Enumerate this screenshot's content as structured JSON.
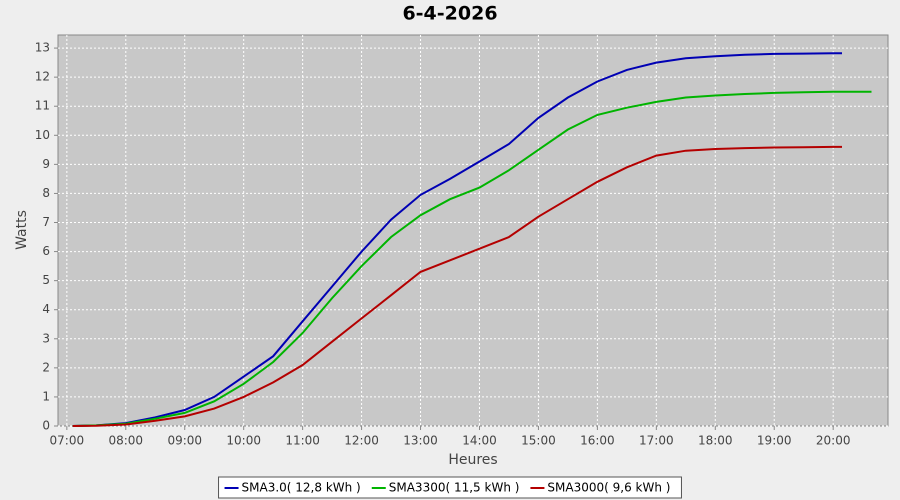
{
  "chart_data": {
    "type": "line",
    "title": "6-4-2026",
    "x_label": "Heures",
    "y_label": "Watts",
    "x": [
      7.1,
      7.5,
      8,
      8.5,
      9,
      9.5,
      10,
      10.5,
      11,
      11.5,
      12,
      12.5,
      13,
      13.5,
      14,
      14.5,
      15,
      15.5,
      16,
      16.5,
      17,
      17.5,
      18,
      18.5,
      19,
      19.5,
      20,
      20.15,
      20.65
    ],
    "series": [
      {
        "name": "SMA3.0( 12,8 kWh )",
        "color": "#0000b4",
        "values": [
          0,
          0.02,
          0.1,
          0.3,
          0.55,
          1.0,
          1.7,
          2.4,
          3.6,
          4.8,
          6.0,
          7.1,
          7.95,
          8.5,
          9.1,
          9.7,
          10.6,
          11.3,
          11.85,
          12.25,
          12.5,
          12.65,
          12.72,
          12.77,
          12.8,
          12.81,
          12.82,
          12.82,
          null
        ]
      },
      {
        "name": "SMA3300( 11,5 kWh )",
        "color": "#00b400",
        "values": [
          0,
          0.02,
          0.08,
          0.25,
          0.45,
          0.85,
          1.45,
          2.2,
          3.2,
          4.4,
          5.5,
          6.5,
          7.25,
          7.8,
          8.2,
          8.8,
          9.5,
          10.2,
          10.7,
          10.95,
          11.15,
          11.3,
          11.37,
          11.42,
          11.46,
          11.48,
          11.5,
          11.5,
          11.5
        ]
      },
      {
        "name": "SMA3000( 9,6 kWh )",
        "color": "#b40000",
        "values": [
          0,
          0.01,
          0.05,
          0.18,
          0.33,
          0.6,
          1.0,
          1.5,
          2.1,
          2.9,
          3.7,
          4.5,
          5.3,
          5.7,
          6.1,
          6.5,
          7.2,
          7.8,
          8.4,
          8.9,
          9.3,
          9.47,
          9.53,
          9.56,
          9.58,
          9.59,
          9.6,
          9.6,
          null
        ]
      }
    ],
    "xlim": [
      6.85,
      20.93
    ],
    "ylim": [
      0,
      13.45
    ],
    "xticks": [
      {
        "value": 7,
        "label": "07:00"
      },
      {
        "value": 8,
        "label": "08:00"
      },
      {
        "value": 9,
        "label": "09:00"
      },
      {
        "value": 10,
        "label": "10:00"
      },
      {
        "value": 11,
        "label": "11:00"
      },
      {
        "value": 12,
        "label": "12:00"
      },
      {
        "value": 13,
        "label": "13:00"
      },
      {
        "value": 14,
        "label": "14:00"
      },
      {
        "value": 15,
        "label": "15:00"
      },
      {
        "value": 16,
        "label": "16:00"
      },
      {
        "value": 17,
        "label": "17:00"
      },
      {
        "value": 18,
        "label": "18:00"
      },
      {
        "value": 19,
        "label": "19:00"
      },
      {
        "value": 20,
        "label": "20:00"
      }
    ],
    "yticks": [
      0,
      1,
      2,
      3,
      4,
      5,
      6,
      7,
      8,
      9,
      10,
      11,
      12,
      13
    ],
    "grid": true,
    "legend": "bottom"
  }
}
